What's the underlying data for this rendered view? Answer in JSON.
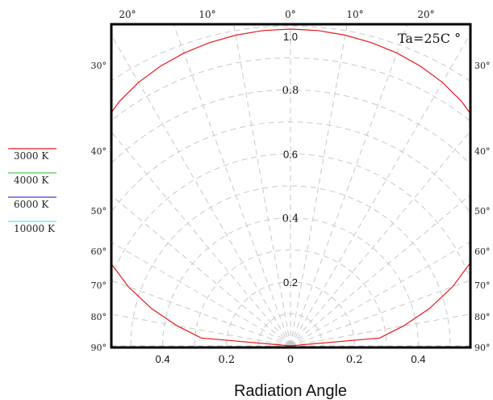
{
  "chart_data": {
    "type": "polar-line",
    "title": "",
    "xlabel": "Radiation Angle",
    "annotation": "Ta=25C °",
    "grid": true,
    "legend_placement": "left",
    "angle_ticks_top": [
      {
        "angle": -20,
        "label": "20°"
      },
      {
        "angle": -10,
        "label": "10°"
      },
      {
        "angle": 0,
        "label": "0°"
      },
      {
        "angle": 10,
        "label": "10°"
      },
      {
        "angle": 20,
        "label": "20°"
      }
    ],
    "angle_ticks_side": [
      {
        "angle": 30,
        "label": "30°"
      },
      {
        "angle": 40,
        "label": "40°"
      },
      {
        "angle": 50,
        "label": "50°"
      },
      {
        "angle": 60,
        "label": "60°"
      },
      {
        "angle": 70,
        "label": "70°"
      },
      {
        "angle": 80,
        "label": "80°"
      },
      {
        "angle": 90,
        "label": "90°"
      }
    ],
    "radial_ticks": [
      {
        "value": 1.0,
        "label": "1.0"
      },
      {
        "value": 0.8,
        "label": "0.8"
      },
      {
        "value": 0.6,
        "label": "0.6"
      },
      {
        "value": 0.4,
        "label": "0.4"
      },
      {
        "value": 0.2,
        "label": "0.2"
      }
    ],
    "bottom_ticks": [
      {
        "value": -0.4,
        "label": "0.4"
      },
      {
        "value": -0.2,
        "label": "0.2"
      },
      {
        "value": 0,
        "label": "0"
      },
      {
        "value": 0.2,
        "label": "0.2"
      },
      {
        "value": 0.4,
        "label": "0.4"
      }
    ],
    "legend": [
      {
        "label": "3000 K",
        "color": "#e8191c"
      },
      {
        "label": "4000 K",
        "color": "#4cc94c"
      },
      {
        "label": "6000 K",
        "color": "#3f3fd0"
      },
      {
        "label": "10000 K",
        "color": "#5ee6e6"
      }
    ],
    "series": [
      {
        "color": "#e8191c",
        "angles": [
          0,
          5,
          10,
          15,
          20,
          25,
          30,
          35,
          40,
          45,
          50,
          55,
          60,
          65,
          70,
          75,
          80,
          85,
          90
        ],
        "values": [
          0.99,
          0.989,
          0.986,
          0.981,
          0.974,
          0.964,
          0.951,
          0.933,
          0.909,
          0.876,
          0.832,
          0.775,
          0.705,
          0.625,
          0.54,
          0.45,
          0.36,
          0.28,
          0.0
        ]
      }
    ]
  }
}
